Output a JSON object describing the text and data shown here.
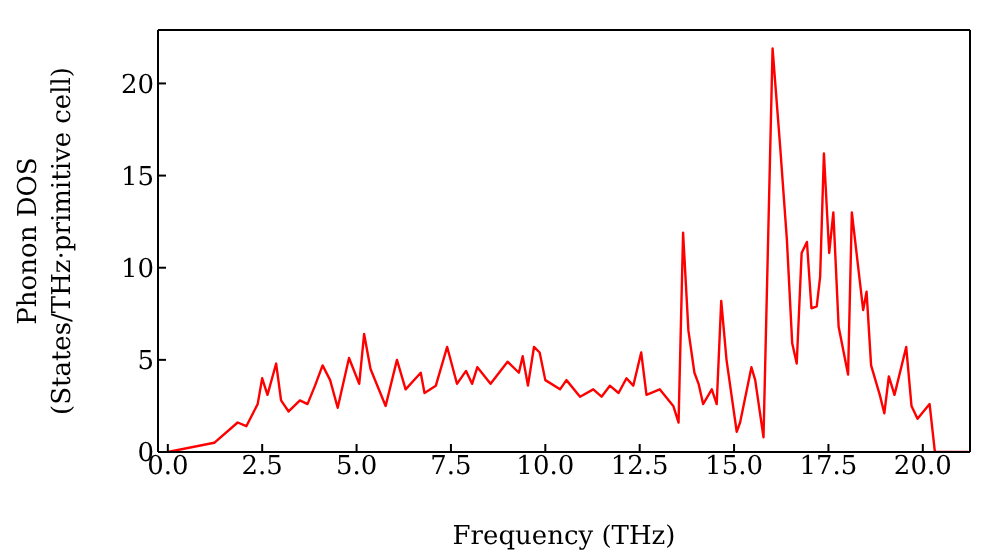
{
  "chart_data": {
    "type": "line",
    "xlabel": "Frequency (THz)",
    "ylabel": "Phonon DOS\n(States/THz·primitive cell)",
    "xlim": [
      -0.26,
      21.25
    ],
    "ylim": [
      0,
      22.9
    ],
    "xticks": [
      {
        "value": 0,
        "label": "0.0"
      },
      {
        "value": 2.5,
        "label": "2.5"
      },
      {
        "value": 5,
        "label": "5.0"
      },
      {
        "value": 7.5,
        "label": "7.5"
      },
      {
        "value": 10,
        "label": "10.0"
      },
      {
        "value": 12.5,
        "label": "12.5"
      },
      {
        "value": 15,
        "label": "15.0"
      },
      {
        "value": 17.5,
        "label": "17.5"
      },
      {
        "value": 20,
        "label": "20.0"
      }
    ],
    "yticks": [
      0,
      5,
      10,
      15,
      20
    ],
    "marker": "none",
    "line_style": "solid",
    "series": [
      {
        "color": "#ff0000",
        "x": [
          0,
          1.23,
          1.85,
          2.08,
          2.38,
          2.5,
          2.64,
          2.87,
          3.0,
          3.2,
          3.5,
          3.7,
          3.9,
          4.1,
          4.3,
          4.5,
          4.8,
          5.07,
          5.2,
          5.37,
          5.77,
          6.07,
          6.3,
          6.7,
          6.8,
          7.1,
          7.4,
          7.66,
          7.9,
          8.06,
          8.2,
          8.55,
          9.0,
          9.3,
          9.4,
          9.54,
          9.7,
          9.85,
          10.0,
          10.39,
          10.56,
          10.92,
          11.27,
          11.49,
          11.71,
          11.94,
          12.15,
          12.33,
          12.54,
          12.68,
          13.03,
          13.39,
          13.53,
          13.65,
          13.79,
          13.95,
          14.06,
          14.18,
          14.41,
          14.54,
          14.66,
          14.8,
          15.07,
          15.16,
          15.46,
          15.56,
          15.78,
          16.02,
          16.22,
          16.4,
          16.54,
          16.66,
          16.79,
          16.93,
          17.05,
          17.19,
          17.28,
          17.38,
          17.52,
          17.63,
          17.77,
          18.02,
          18.12,
          18.42,
          18.51,
          18.63,
          18.86,
          18.98,
          19.1,
          19.25,
          19.56,
          19.7,
          19.86,
          20.18,
          20.32,
          21.2
        ],
        "values": [
          0,
          0.5,
          1.6,
          1.4,
          2.6,
          4.0,
          3.1,
          4.8,
          2.8,
          2.2,
          2.8,
          2.6,
          3.6,
          4.7,
          3.9,
          2.4,
          5.1,
          3.7,
          6.4,
          4.5,
          2.5,
          5.0,
          3.4,
          4.3,
          3.2,
          3.6,
          5.7,
          3.7,
          4.4,
          3.7,
          4.6,
          3.7,
          4.9,
          4.3,
          5.2,
          3.6,
          5.7,
          5.4,
          3.9,
          3.4,
          3.9,
          3.0,
          3.4,
          3.0,
          3.6,
          3.2,
          4.0,
          3.6,
          5.4,
          3.1,
          3.4,
          2.5,
          1.6,
          11.9,
          6.6,
          4.3,
          3.7,
          2.6,
          3.4,
          2.6,
          8.2,
          5.0,
          1.1,
          1.6,
          4.6,
          3.9,
          0.8,
          21.9,
          16.6,
          11.5,
          5.9,
          4.8,
          10.8,
          11.4,
          7.8,
          7.9,
          9.5,
          16.2,
          10.8,
          13.0,
          6.8,
          4.2,
          13.0,
          7.7,
          8.7,
          4.7,
          3.1,
          2.1,
          4.1,
          3.1,
          5.7,
          2.5,
          1.8,
          2.6,
          0,
          0
        ]
      }
    ]
  }
}
